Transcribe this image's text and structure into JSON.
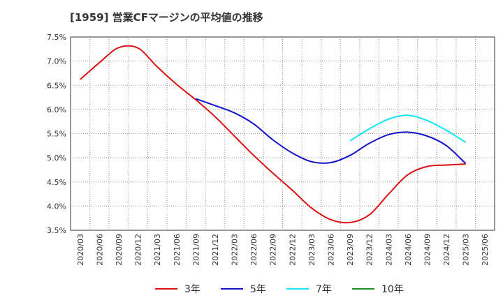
{
  "chart_data": {
    "type": "line",
    "title": "[1959]  営業CFマージンの平均値の推移",
    "xlabel": "",
    "ylabel": "",
    "ylim": [
      3.5,
      7.5
    ],
    "y_unit": "%",
    "yticks": [
      "3.5%",
      "4.0%",
      "4.5%",
      "5.0%",
      "5.5%",
      "6.0%",
      "6.5%",
      "7.0%",
      "7.5%"
    ],
    "x": [
      "2020/03",
      "2020/06",
      "2020/09",
      "2020/12",
      "2021/03",
      "2021/06",
      "2021/09",
      "2021/12",
      "2022/03",
      "2022/06",
      "2022/09",
      "2022/12",
      "2023/03",
      "2023/06",
      "2023/09",
      "2023/12",
      "2024/03",
      "2024/06",
      "2024/09",
      "2024/12",
      "2025/03",
      "2025/06"
    ],
    "grid": true,
    "legend_position": "bottom",
    "series": [
      {
        "name": "3年",
        "color": "#dd1111",
        "values": [
          6.62,
          6.97,
          7.28,
          7.27,
          6.88,
          6.52,
          6.2,
          5.85,
          5.45,
          5.05,
          4.68,
          4.33,
          3.96,
          3.72,
          3.66,
          3.82,
          4.25,
          4.65,
          4.82,
          4.85,
          4.87,
          null
        ]
      },
      {
        "name": "5年",
        "color": "#1111cc",
        "values": [
          null,
          null,
          null,
          null,
          null,
          null,
          6.22,
          6.08,
          5.93,
          5.7,
          5.37,
          5.1,
          4.92,
          4.9,
          5.05,
          5.3,
          5.48,
          5.53,
          5.45,
          5.25,
          4.88,
          null
        ]
      },
      {
        "name": "7年",
        "color": "#11e6f0",
        "values": [
          null,
          null,
          null,
          null,
          null,
          null,
          null,
          null,
          null,
          null,
          null,
          null,
          null,
          null,
          5.35,
          5.6,
          5.8,
          5.88,
          5.77,
          5.57,
          5.32,
          null
        ]
      },
      {
        "name": "10年",
        "color": "#228b22",
        "values": [
          null,
          null,
          null,
          null,
          null,
          null,
          null,
          null,
          null,
          null,
          null,
          null,
          null,
          null,
          null,
          null,
          null,
          null,
          null,
          null,
          null,
          null
        ]
      }
    ]
  }
}
